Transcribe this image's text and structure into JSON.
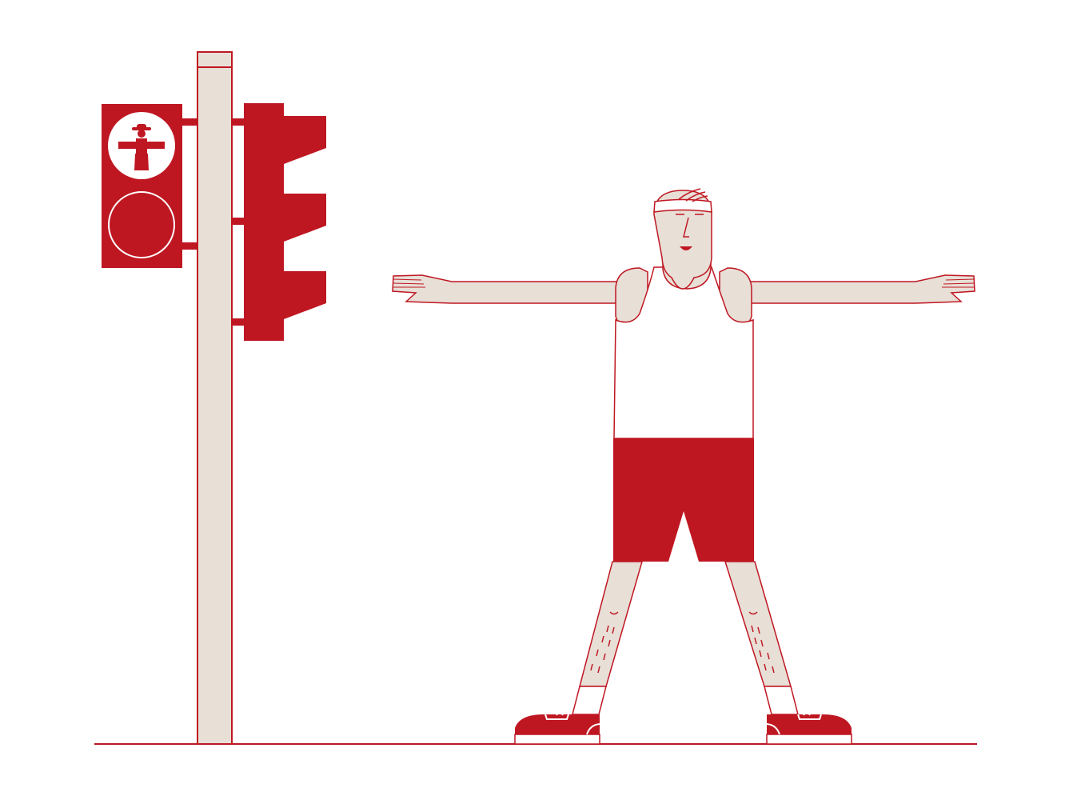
{
  "palette": {
    "red": "#bf1722",
    "skin": "#e8dfd7",
    "white": "#ffffff"
  },
  "scene": {
    "subject": "person-stretching-arms-out-mimicking-pedestrian-signal",
    "pedestrian_signal": {
      "state": "red",
      "symbol": "ampelmann-standing-icon"
    }
  }
}
